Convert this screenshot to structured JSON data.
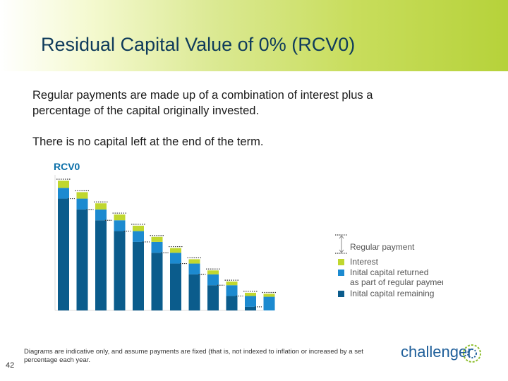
{
  "slide": {
    "title": "Residual Capital Value of 0% (RCV0)",
    "paragraph_1": "Regular payments are made up of a combination of interest plus a percentage of the capital originally invested.",
    "paragraph_2": "There is no capital left at the end of the term.",
    "footnote": "Diagrams are indicative only, and assume payments are fixed (that is, not indexed to inflation or increased by a set percentage each year.",
    "page_number": "42",
    "logo_text": "challenger"
  },
  "chart_data": {
    "type": "bar",
    "title": "RCV0",
    "series": [
      {
        "name": "Interest",
        "color": "#c0d72f",
        "values": [
          10,
          9,
          8.5,
          8,
          7.5,
          7,
          6.5,
          6,
          5.5,
          5,
          4.5,
          4
        ]
      },
      {
        "name": "Inital capital returned as part of regular payment",
        "color": "#1c8ad0",
        "values": [
          15,
          15,
          15,
          15,
          15,
          15,
          15,
          15,
          15,
          15,
          15,
          19
        ]
      },
      {
        "name": "Inital capital remaining",
        "color": "#0b5c8c",
        "values": [
          155,
          140,
          125,
          110,
          95,
          80,
          65,
          50,
          35,
          20,
          5,
          0
        ]
      }
    ],
    "regular_payment_label": "Regular payment",
    "colors": {
      "interest": "#c0d72f",
      "returned": "#1c8ad0",
      "remaining": "#0b5c8c"
    }
  }
}
